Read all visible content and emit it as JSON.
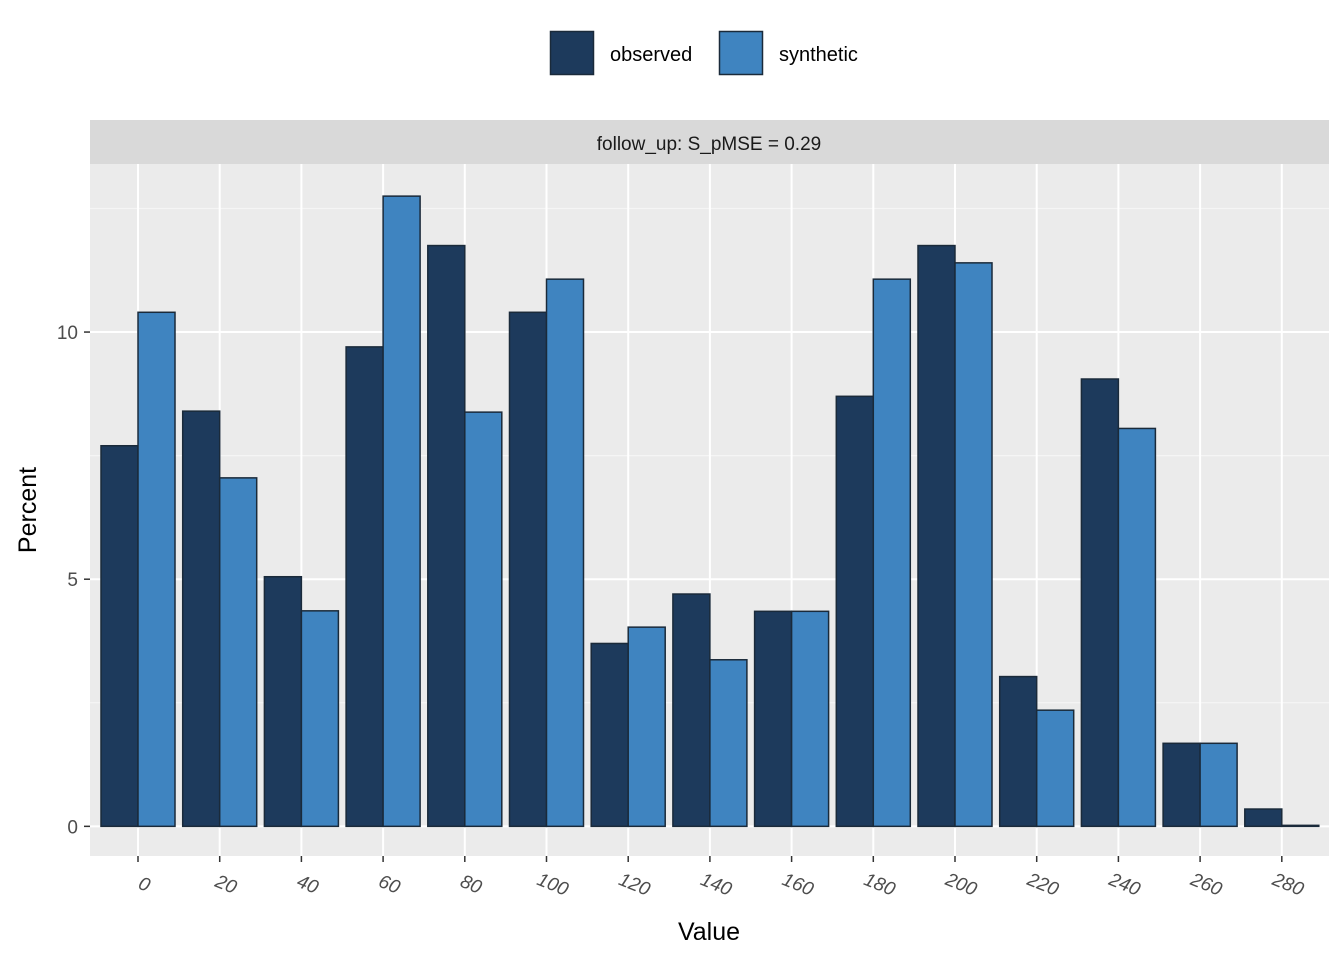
{
  "chart_data": {
    "type": "bar",
    "facet_label": "follow_up: S_pMSE = 0.29",
    "xlabel": "Value",
    "ylabel": "Percent",
    "x_ticks": [
      "0",
      "20",
      "40",
      "60",
      "80",
      "100",
      "120",
      "140",
      "160",
      "180",
      "200",
      "220",
      "240",
      "260",
      "280"
    ],
    "y_ticks": [
      0,
      5,
      10
    ],
    "ylim": [
      -0.6,
      13.4
    ],
    "grid": true,
    "legend_position": "top",
    "series": [
      {
        "name": "observed",
        "color": "#1d3a5c",
        "values": [
          7.7,
          8.4,
          5.05,
          9.7,
          11.75,
          10.4,
          3.7,
          4.7,
          4.35,
          8.7,
          11.75,
          3.03,
          9.05,
          1.68,
          0.35
        ]
      },
      {
        "name": "synthetic",
        "color": "#3f84c0",
        "values": [
          10.4,
          7.05,
          4.36,
          12.75,
          8.38,
          11.07,
          4.03,
          3.37,
          4.35,
          11.07,
          11.4,
          2.35,
          8.05,
          1.68,
          0.02
        ]
      }
    ]
  }
}
